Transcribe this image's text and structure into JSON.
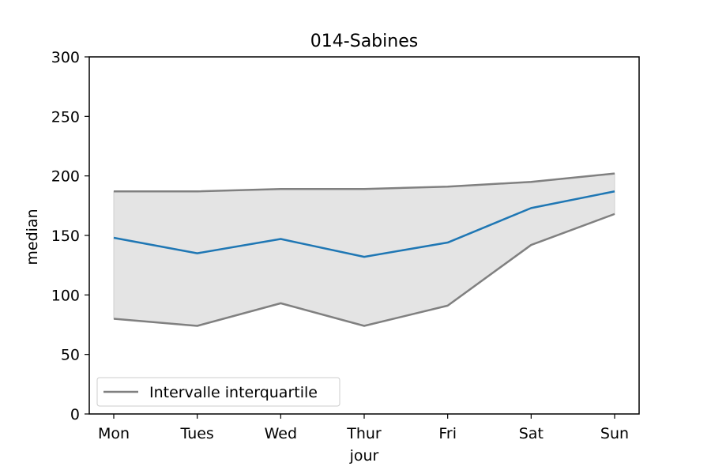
{
  "chart_data": {
    "type": "line",
    "title": "014-Sabines",
    "xlabel": "jour",
    "ylabel": "median",
    "categories": [
      "Mon",
      "Tues",
      "Wed",
      "Thur",
      "Fri",
      "Sat",
      "Sun"
    ],
    "ylim": [
      0,
      300
    ],
    "yticks": [
      0,
      50,
      100,
      150,
      200,
      250,
      300
    ],
    "series": [
      {
        "role": "median",
        "color": "#1f77b4",
        "values": [
          148,
          135,
          147,
          132,
          144,
          173,
          187
        ]
      },
      {
        "role": "q75",
        "color": "#808080",
        "values": [
          187,
          187,
          189,
          189,
          191,
          195,
          202
        ]
      },
      {
        "role": "q25",
        "color": "#808080",
        "values": [
          80,
          74,
          93,
          74,
          91,
          142,
          168
        ]
      }
    ],
    "band_fill": "#e4e4e4",
    "legend": {
      "location": "lower left",
      "entries": [
        {
          "label": "Intervalle interquartile",
          "color": "#808080"
        }
      ]
    },
    "grid": false
  }
}
